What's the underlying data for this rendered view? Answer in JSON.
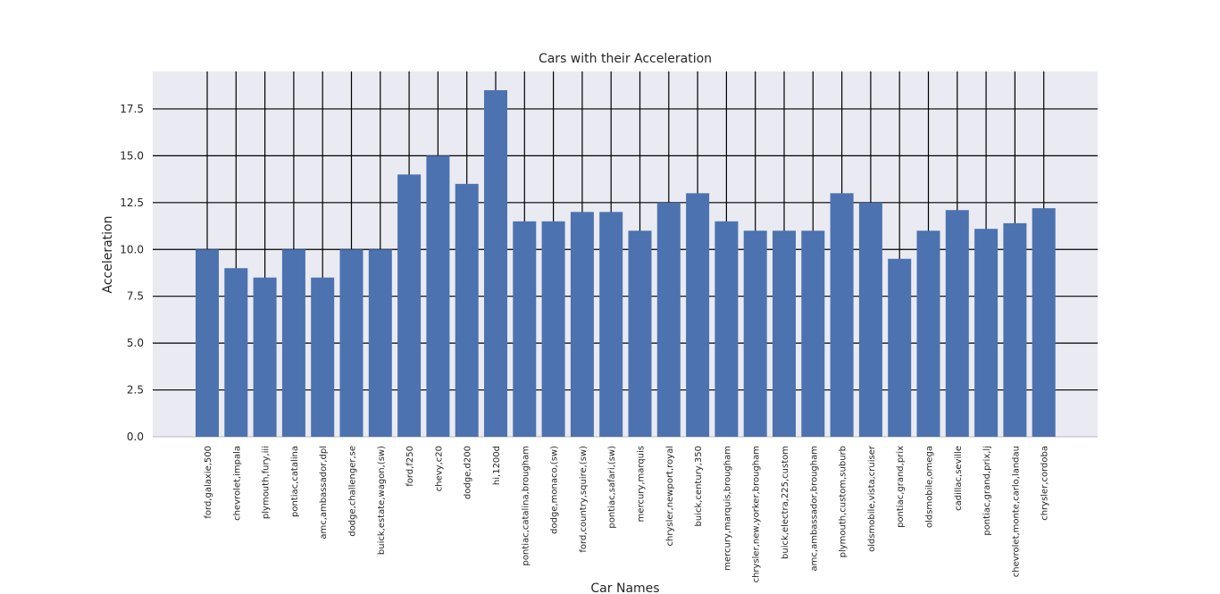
{
  "chart_data": {
    "type": "bar",
    "title": "Cars with their Acceleration",
    "xlabel": "Car Names",
    "ylabel": "Acceleration",
    "ylim": [
      0,
      19.5
    ],
    "yticks": [
      "0.0",
      "2.5",
      "5.0",
      "7.5",
      "10.0",
      "12.5",
      "15.0",
      "17.5"
    ],
    "grid": true,
    "bar_color": "#4c72b0",
    "background_color": "#eaeaf2",
    "grid_color": "#000000",
    "categories": [
      "ford,galaxie,500",
      "chevrolet,impala",
      "plymouth,fury,iii",
      "pontiac,catalina",
      "amc,ambassador,dpl",
      "dodge,challenger,se",
      "buick,estate,wagon,(sw)",
      "ford,f250",
      "chevy,c20",
      "dodge,d200",
      "hi,1200d",
      "pontiac,catalina,brougham",
      "dodge,monaco,(sw)",
      "ford,country,squire,(sw)",
      "pontiac,safari,(sw)",
      "mercury,marquis",
      "chrysler,newport,royal",
      "buick,century,350",
      "mercury,marquis,brougham",
      "chrysler,new,yorker,brougham",
      "buick,electra,225,custom",
      "amc,ambassador,brougham",
      "plymouth,custom,suburb",
      "oldsmobile,vista,cruiser",
      "pontiac,grand,prix",
      "oldsmobile,omega",
      "cadillac,seville",
      "pontiac,grand,prix,lj",
      "chevrolet,monte,carlo,landau",
      "chrysler,cordoba"
    ],
    "values": [
      10.0,
      9.0,
      8.5,
      10.0,
      8.5,
      10.0,
      10.0,
      14.0,
      15.0,
      13.5,
      18.5,
      11.5,
      11.5,
      12.0,
      12.0,
      11.0,
      12.5,
      13.0,
      11.5,
      11.0,
      11.0,
      11.0,
      13.0,
      12.5,
      9.5,
      11.0,
      12.1,
      11.1,
      11.4,
      12.2
    ]
  }
}
